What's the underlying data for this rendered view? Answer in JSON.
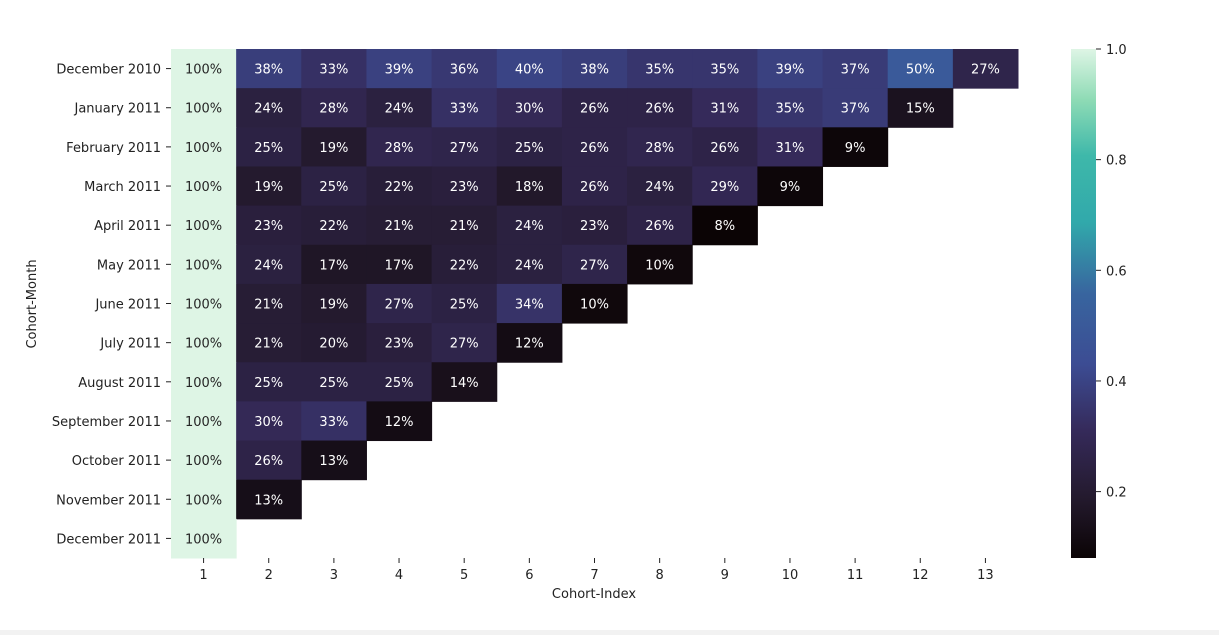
{
  "chart_data": {
    "type": "heatmap",
    "xlabel": "Cohort-Index",
    "ylabel": "Cohort-Month",
    "x_categories": [
      "1",
      "2",
      "3",
      "4",
      "5",
      "6",
      "7",
      "8",
      "9",
      "10",
      "11",
      "12",
      "13"
    ],
    "y_categories": [
      "December 2010",
      "January 2011",
      "February 2011",
      "March 2011",
      "April 2011",
      "May 2011",
      "June 2011",
      "July 2011",
      "August 2011",
      "September 2011",
      "October 2011",
      "November 2011",
      "December 2011"
    ],
    "values": [
      [
        1.0,
        0.38,
        0.33,
        0.39,
        0.36,
        0.4,
        0.38,
        0.35,
        0.35,
        0.39,
        0.37,
        0.5,
        0.27
      ],
      [
        1.0,
        0.24,
        0.28,
        0.24,
        0.33,
        0.3,
        0.26,
        0.26,
        0.31,
        0.35,
        0.37,
        0.15
      ],
      [
        1.0,
        0.25,
        0.19,
        0.28,
        0.27,
        0.25,
        0.26,
        0.28,
        0.26,
        0.31,
        0.09
      ],
      [
        1.0,
        0.19,
        0.25,
        0.22,
        0.23,
        0.18,
        0.26,
        0.24,
        0.29,
        0.09
      ],
      [
        1.0,
        0.23,
        0.22,
        0.21,
        0.21,
        0.24,
        0.23,
        0.26,
        0.08
      ],
      [
        1.0,
        0.24,
        0.17,
        0.17,
        0.22,
        0.24,
        0.27,
        0.1
      ],
      [
        1.0,
        0.21,
        0.19,
        0.27,
        0.25,
        0.34,
        0.1
      ],
      [
        1.0,
        0.21,
        0.2,
        0.23,
        0.27,
        0.12
      ],
      [
        1.0,
        0.25,
        0.25,
        0.25,
        0.14
      ],
      [
        1.0,
        0.3,
        0.33,
        0.12
      ],
      [
        1.0,
        0.26,
        0.13
      ],
      [
        1.0,
        0.13
      ],
      [
        1.0
      ]
    ],
    "annotations": [
      [
        "100%",
        "38%",
        "33%",
        "39%",
        "36%",
        "40%",
        "38%",
        "35%",
        "35%",
        "39%",
        "37%",
        "50%",
        "27%"
      ],
      [
        "100%",
        "24%",
        "28%",
        "24%",
        "33%",
        "30%",
        "26%",
        "26%",
        "31%",
        "35%",
        "37%",
        "15%"
      ],
      [
        "100%",
        "25%",
        "19%",
        "28%",
        "27%",
        "25%",
        "26%",
        "28%",
        "26%",
        "31%",
        "9%"
      ],
      [
        "100%",
        "19%",
        "25%",
        "22%",
        "23%",
        "18%",
        "26%",
        "24%",
        "29%",
        "9%"
      ],
      [
        "100%",
        "23%",
        "22%",
        "21%",
        "21%",
        "24%",
        "23%",
        "26%",
        "8%"
      ],
      [
        "100%",
        "24%",
        "17%",
        "17%",
        "22%",
        "24%",
        "27%",
        "10%"
      ],
      [
        "100%",
        "21%",
        "19%",
        "27%",
        "25%",
        "34%",
        "10%"
      ],
      [
        "100%",
        "21%",
        "20%",
        "23%",
        "27%",
        "12%"
      ],
      [
        "100%",
        "25%",
        "25%",
        "25%",
        "14%"
      ],
      [
        "100%",
        "30%",
        "33%",
        "12%"
      ],
      [
        "100%",
        "26%",
        "13%"
      ],
      [
        "100%",
        "13%"
      ],
      [
        "100%"
      ]
    ],
    "colormap": "mako",
    "vmin": 0.08,
    "vmax": 1.0,
    "colorbar_ticks": [
      "0.2",
      "0.4",
      "0.6",
      "0.8",
      "1.0"
    ],
    "colorbar_tick_values": [
      0.2,
      0.4,
      0.6,
      0.8,
      1.0
    ],
    "grid": false,
    "legend": "colorbar-right"
  }
}
